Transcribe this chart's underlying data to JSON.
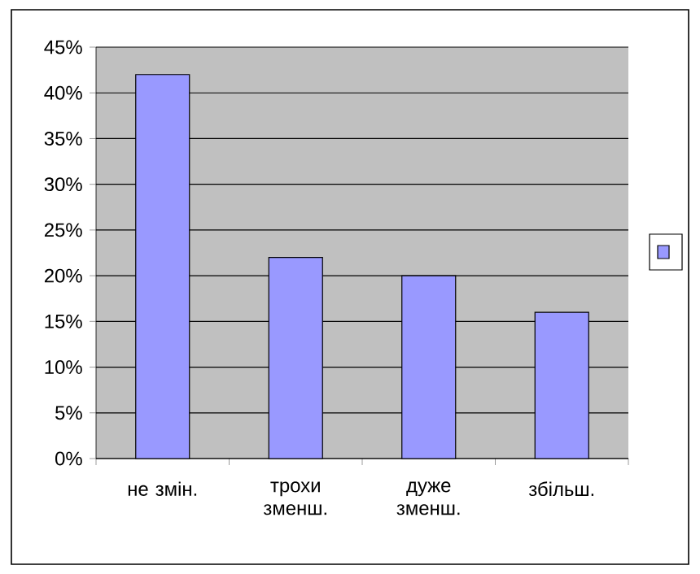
{
  "chart_data": {
    "type": "bar",
    "categories": [
      "не змін.",
      "трохи зменш.",
      "дуже зменш.",
      "збільш."
    ],
    "series": [
      {
        "color": "#9999ff",
        "values": [
          42,
          22,
          20,
          16
        ]
      }
    ],
    "ylim": [
      0,
      45
    ],
    "yticks": [
      {
        "value": 0,
        "label": "0%"
      },
      {
        "value": 5,
        "label": "5%"
      },
      {
        "value": 10,
        "label": "10%"
      },
      {
        "value": 15,
        "label": "15%"
      },
      {
        "value": 20,
        "label": "20%"
      },
      {
        "value": 25,
        "label": "25%"
      },
      {
        "value": 30,
        "label": "30%"
      },
      {
        "value": 35,
        "label": "35%"
      },
      {
        "value": 40,
        "label": "40%"
      },
      {
        "value": 45,
        "label": "45%"
      }
    ],
    "grid": "y"
  }
}
